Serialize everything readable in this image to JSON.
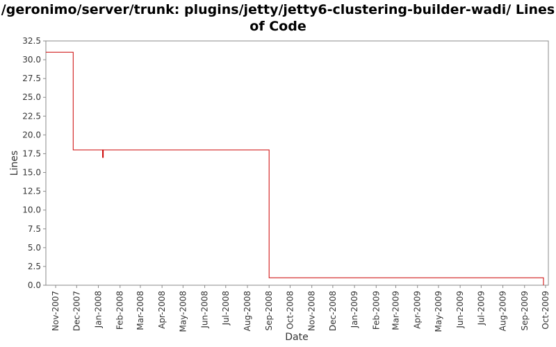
{
  "chart_data": {
    "type": "line",
    "title": "/geronimo/server/trunk: plugins/jetty/jetty6-clustering-builder-wadi/ Lines of Code",
    "xlabel": "Date",
    "ylabel": "Lines",
    "ylim": [
      0,
      32.5
    ],
    "y_ticks": [
      "0.0",
      "2.5",
      "5.0",
      "7.5",
      "10.0",
      "12.5",
      "15.0",
      "17.5",
      "20.0",
      "22.5",
      "25.0",
      "27.5",
      "30.0",
      "32.5"
    ],
    "x_ticks": [
      "Nov-2007",
      "Dec-2007",
      "Jan-2008",
      "Feb-2008",
      "Mar-2008",
      "Apr-2008",
      "May-2008",
      "Jun-2008",
      "Jul-2008",
      "Aug-2008",
      "Sep-2008",
      "Oct-2008",
      "Nov-2008",
      "Dec-2008",
      "Jan-2009",
      "Feb-2009",
      "Mar-2009",
      "Apr-2009",
      "May-2009",
      "Jun-2009",
      "Jul-2009",
      "Aug-2009",
      "Sep-2009",
      "Oct-2009"
    ],
    "xlim": [
      "2007-10-18",
      "2009-10-05"
    ],
    "grid": false,
    "line_style": "step",
    "series_color": "#cc0000",
    "series": [
      {
        "x": [
          "2007-10-18",
          "2007-11-26",
          "2008-01-07",
          "2008-01-08",
          "2008-09-01",
          "2009-09-28",
          "2009-09-28"
        ],
        "values": [
          31,
          18,
          17,
          18,
          1,
          1,
          0
        ]
      }
    ]
  }
}
